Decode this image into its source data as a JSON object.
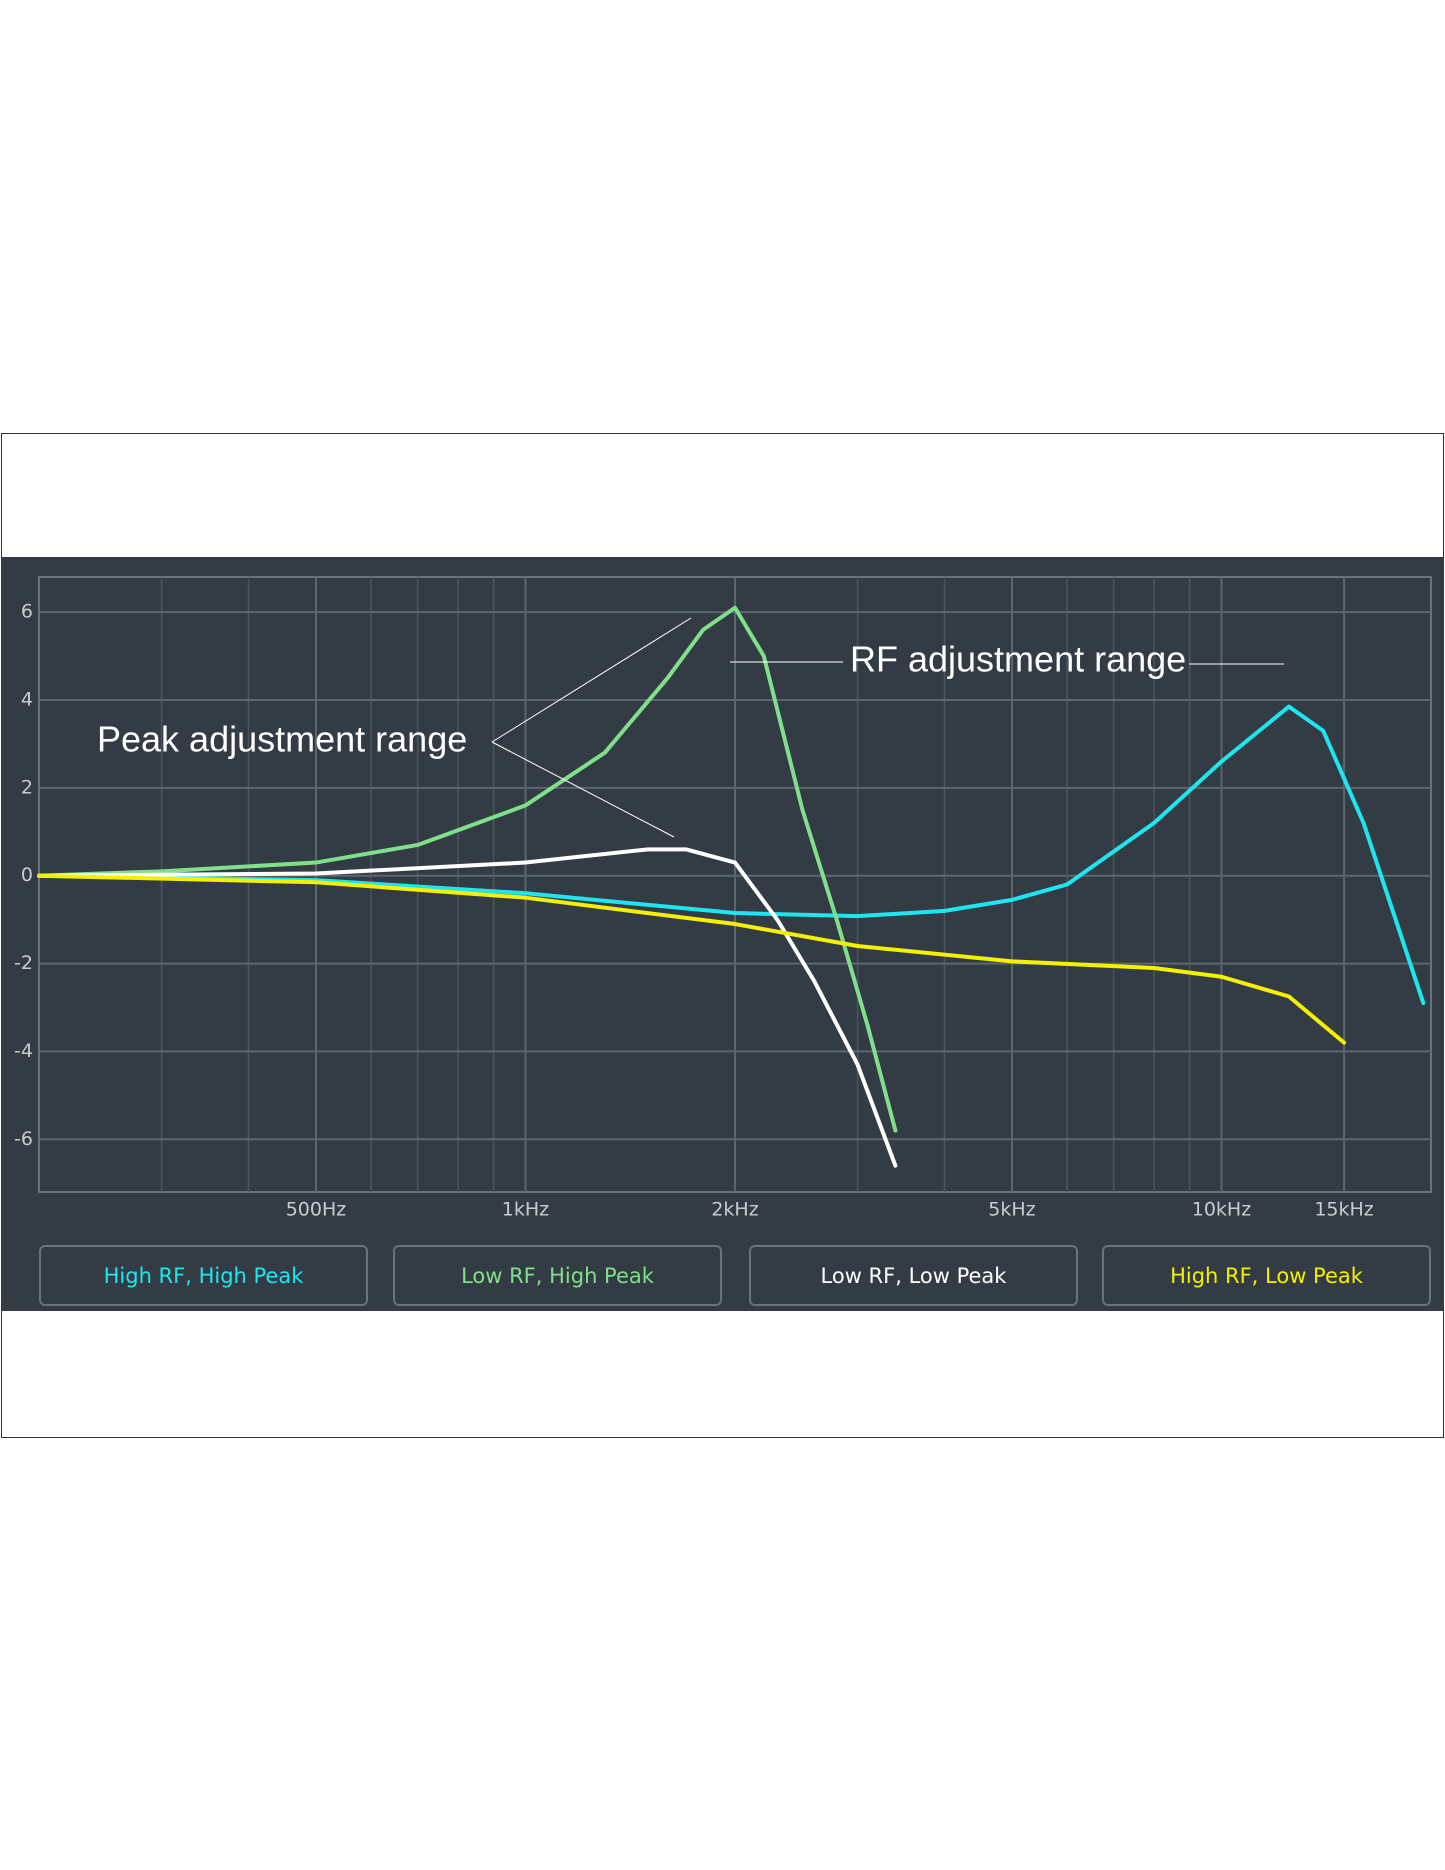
{
  "chart_data": {
    "type": "line",
    "log_x": true,
    "grid": true,
    "xlim": [
      200,
      20000
    ],
    "ylim": [
      -7.2,
      6.8
    ],
    "xticks": [
      {
        "value": 500,
        "label": "500Hz"
      },
      {
        "value": 1000,
        "label": "1kHz"
      },
      {
        "value": 2000,
        "label": "2kHz"
      },
      {
        "value": 5000,
        "label": "5kHz"
      },
      {
        "value": 10000,
        "label": "10kHz"
      },
      {
        "value": 15000,
        "label": "15kHz"
      }
    ],
    "yticks": [
      -6,
      -4,
      -2,
      0,
      2,
      4,
      6
    ],
    "annotations": [
      "Peak adjustment range",
      "RF adjustment range"
    ],
    "series": [
      {
        "name": "High RF, High Peak",
        "color": "#1ee6f0",
        "x": [
          200,
          500,
          1000,
          2000,
          3000,
          4000,
          5000,
          6000,
          8000,
          10000,
          12500,
          14000,
          16000,
          19500
        ],
        "values": [
          0,
          -0.1,
          -0.4,
          -0.85,
          -0.92,
          -0.8,
          -0.55,
          -0.2,
          1.2,
          2.6,
          3.85,
          3.3,
          1.2,
          -2.9
        ]
      },
      {
        "name": "Low RF, High Peak",
        "color": "#80e08a",
        "x": [
          200,
          300,
          500,
          700,
          1000,
          1300,
          1600,
          1800,
          2000,
          2200,
          2500,
          2800,
          3100,
          3400
        ],
        "values": [
          0,
          0.1,
          0.3,
          0.7,
          1.6,
          2.8,
          4.5,
          5.6,
          6.1,
          5.0,
          1.5,
          -1.0,
          -3.4,
          -5.8
        ]
      },
      {
        "name": "Low RF, Low Peak",
        "color": "#ffffff",
        "x": [
          200,
          500,
          1000,
          1500,
          1700,
          2000,
          2300,
          2600,
          3000,
          3400
        ],
        "values": [
          0,
          0.05,
          0.3,
          0.6,
          0.6,
          0.3,
          -1.0,
          -2.4,
          -4.3,
          -6.6
        ]
      },
      {
        "name": "High RF, Low Peak",
        "color": "#f5f000",
        "x": [
          200,
          500,
          1000,
          2000,
          3000,
          5000,
          8000,
          10000,
          12500,
          15000
        ],
        "values": [
          0,
          -0.15,
          -0.5,
          -1.1,
          -1.6,
          -1.95,
          -2.1,
          -2.3,
          -2.75,
          -3.8
        ]
      }
    ]
  }
}
